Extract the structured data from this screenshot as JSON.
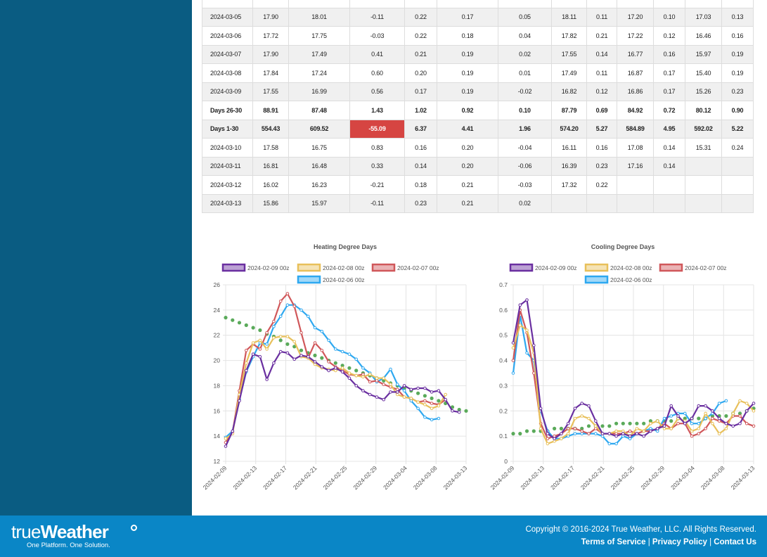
{
  "table": {
    "rows": [
      {
        "cells": [
          "2024-03-05",
          "17.90",
          "18.01",
          "-0.11",
          "0.22",
          "0.17",
          "0.05",
          "18.11",
          "0.11",
          "17.20",
          "0.10",
          "17.03",
          "0.13"
        ]
      },
      {
        "cells": [
          "2024-03-06",
          "17.72",
          "17.75",
          "-0.03",
          "0.22",
          "0.18",
          "0.04",
          "17.82",
          "0.21",
          "17.22",
          "0.12",
          "16.46",
          "0.16"
        ]
      },
      {
        "cells": [
          "2024-03-07",
          "17.90",
          "17.49",
          "0.41",
          "0.21",
          "0.19",
          "0.02",
          "17.55",
          "0.14",
          "16.77",
          "0.16",
          "15.97",
          "0.19"
        ]
      },
      {
        "cells": [
          "2024-03-08",
          "17.84",
          "17.24",
          "0.60",
          "0.20",
          "0.19",
          "0.01",
          "17.49",
          "0.11",
          "16.87",
          "0.17",
          "15.40",
          "0.19"
        ]
      },
      {
        "cells": [
          "2024-03-09",
          "17.55",
          "16.99",
          "0.56",
          "0.17",
          "0.19",
          "-0.02",
          "16.82",
          "0.12",
          "16.86",
          "0.17",
          "15.26",
          "0.23"
        ]
      },
      {
        "bold": true,
        "cells": [
          "Days 26-30",
          "88.91",
          "87.48",
          "1.43",
          "1.02",
          "0.92",
          "0.10",
          "87.79",
          "0.69",
          "84.92",
          "0.72",
          "80.12",
          "0.90"
        ]
      },
      {
        "bold": true,
        "alert_col": 3,
        "cells": [
          "Days 1-30",
          "554.43",
          "609.52",
          "-55.09",
          "6.37",
          "4.41",
          "1.96",
          "574.20",
          "5.27",
          "584.89",
          "4.95",
          "592.02",
          "5.22"
        ]
      },
      {
        "cells": [
          "2024-03-10",
          "17.58",
          "16.75",
          "0.83",
          "0.16",
          "0.20",
          "-0.04",
          "16.11",
          "0.16",
          "17.08",
          "0.14",
          "15.31",
          "0.24"
        ]
      },
      {
        "cells": [
          "2024-03-11",
          "16.81",
          "16.48",
          "0.33",
          "0.14",
          "0.20",
          "-0.06",
          "16.39",
          "0.23",
          "17.16",
          "0.14",
          "",
          ""
        ]
      },
      {
        "cells": [
          "2024-03-12",
          "16.02",
          "16.23",
          "-0.21",
          "0.18",
          "0.21",
          "-0.03",
          "17.32",
          "0.22",
          "",
          "",
          "",
          ""
        ]
      },
      {
        "cells": [
          "2024-03-13",
          "15.86",
          "15.97",
          "-0.11",
          "0.23",
          "0.21",
          "0.02",
          "",
          "",
          "",
          "",
          "",
          ""
        ]
      }
    ]
  },
  "chart_data": [
    {
      "type": "line",
      "title": "Heating Degree Days",
      "ylim": [
        12,
        26
      ],
      "yticks": [
        "12",
        "14",
        "16",
        "18",
        "20",
        "22",
        "24",
        "26"
      ],
      "xticks": [
        "2024-02-09",
        "2024-02-13",
        "2024-02-17",
        "2024-02-21",
        "2024-02-25",
        "2024-02-29",
        "2024-03-04",
        "2024-03-08",
        "2024-03-13"
      ],
      "legend_placement": "top",
      "grid": true,
      "series": [
        {
          "name": "2024-02-09 00z",
          "color": "#6a2fa0",
          "values": [
            13.2,
            14.4,
            16.8,
            19.2,
            20.5,
            20.3,
            18.5,
            19.8,
            20.7,
            20.6,
            20.1,
            20.4,
            20.3,
            19.9,
            19.5,
            19.2,
            19.4,
            19.1,
            18.6,
            18.0,
            17.6,
            17.3,
            17.1,
            16.9,
            17.5,
            17.5,
            18.0,
            17.7,
            17.8,
            17.8,
            17.5,
            17.6,
            16.9,
            16.0,
            15.9
          ]
        },
        {
          "name": "2024-02-08 00z",
          "color": "#e8c05a",
          "values": [
            13.8,
            14.2,
            17.3,
            19.8,
            21.4,
            21.6,
            20.9,
            21.8,
            21.9,
            21.9,
            21.5,
            20.3,
            20.2,
            19.7,
            19.4,
            19.3,
            19.2,
            19.4,
            19.0,
            18.8,
            18.7,
            18.9,
            18.6,
            18.6,
            18.1,
            17.3,
            17.1,
            17.0,
            16.7,
            16.5,
            16.2,
            16.4,
            17.3
          ]
        },
        {
          "name": "2024-02-07 00z",
          "color": "#d0575a",
          "values": [
            13.5,
            14.3,
            17.6,
            20.8,
            21.3,
            20.9,
            22.2,
            23.1,
            24.7,
            25.3,
            24.3,
            22.2,
            20.2,
            21.4,
            20.8,
            19.9,
            19.5,
            19.2,
            18.9,
            18.8,
            18.9,
            18.3,
            18.4,
            18.1,
            17.9,
            17.7,
            17.1,
            17.0,
            16.7,
            16.8,
            16.6,
            16.5,
            16.9
          ]
        },
        {
          "name": "2024-02-06 00z",
          "color": "#2ea8f0",
          "values": [
            13.9,
            14.4,
            16.9,
            19.1,
            20.3,
            21.4,
            21.3,
            22.7,
            23.5,
            24.4,
            24.4,
            24.0,
            23.5,
            22.6,
            22.3,
            21.6,
            20.9,
            20.7,
            20.5,
            20.1,
            19.4,
            19.0,
            18.3,
            18.6,
            19.3,
            18.1,
            17.6,
            16.8,
            16.2,
            15.5,
            15.3,
            15.4
          ]
        },
        {
          "name": "",
          "color": "#5aaa5a",
          "values": [
            23.4,
            23.2,
            23.0,
            22.8,
            22.6,
            22.4,
            22.1,
            21.9,
            21.6,
            21.3,
            21.1,
            20.8,
            20.6,
            20.4,
            20.2,
            20.0,
            19.8,
            19.6,
            19.4,
            19.2,
            19.0,
            18.8,
            18.6,
            18.4,
            18.2,
            18.0,
            17.8,
            17.6,
            17.4,
            17.2,
            17.0,
            16.8,
            16.6,
            16.3,
            16.1,
            16.0
          ]
        }
      ]
    },
    {
      "type": "line",
      "title": "Cooling Degree Days",
      "ylim": [
        0,
        0.7
      ],
      "yticks": [
        "0",
        "0.1",
        "0.2",
        "0.3",
        "0.4",
        "0.5",
        "0.6",
        "0.7"
      ],
      "xticks": [
        "2024-02-09",
        "2024-02-13",
        "2024-02-17",
        "2024-02-21",
        "2024-02-25",
        "2024-02-29",
        "2024-03-04",
        "2024-03-08",
        "2024-03-13"
      ],
      "legend_placement": "top",
      "grid": true,
      "series": [
        {
          "name": "2024-02-09 00z",
          "color": "#6a2fa0",
          "values": [
            0.47,
            0.62,
            0.64,
            0.46,
            0.21,
            0.11,
            0.09,
            0.11,
            0.15,
            0.21,
            0.23,
            0.22,
            0.16,
            0.11,
            0.11,
            0.1,
            0.11,
            0.1,
            0.11,
            0.1,
            0.12,
            0.13,
            0.14,
            0.22,
            0.18,
            0.15,
            0.17,
            0.22,
            0.22,
            0.2,
            0.17,
            0.15,
            0.14,
            0.15,
            0.2,
            0.23
          ]
        },
        {
          "name": "2024-02-08 00z",
          "color": "#e8c05a",
          "values": [
            0.45,
            0.54,
            0.52,
            0.43,
            0.13,
            0.07,
            0.08,
            0.09,
            0.11,
            0.17,
            0.18,
            0.17,
            0.14,
            0.11,
            0.11,
            0.12,
            0.12,
            0.1,
            0.13,
            0.12,
            0.15,
            0.16,
            0.13,
            0.13,
            0.17,
            0.16,
            0.12,
            0.13,
            0.19,
            0.15,
            0.11,
            0.13,
            0.19,
            0.24,
            0.23,
            0.2
          ]
        },
        {
          "name": "2024-02-07 00z",
          "color": "#d0575a",
          "values": [
            0.4,
            0.6,
            0.51,
            0.35,
            0.15,
            0.09,
            0.1,
            0.11,
            0.13,
            0.13,
            0.12,
            0.11,
            0.13,
            0.11,
            0.11,
            0.11,
            0.11,
            0.12,
            0.11,
            0.12,
            0.12,
            0.13,
            0.15,
            0.13,
            0.15,
            0.15,
            0.1,
            0.11,
            0.13,
            0.17,
            0.16,
            0.15,
            0.18,
            0.18,
            0.15,
            0.14
          ]
        },
        {
          "name": "2024-02-06 00z",
          "color": "#2ea8f0",
          "values": [
            0.35,
            0.58,
            0.43,
            0.4,
            0.2,
            0.12,
            0.09,
            0.09,
            0.1,
            0.11,
            0.11,
            0.11,
            0.11,
            0.1,
            0.07,
            0.07,
            0.1,
            0.09,
            0.11,
            0.12,
            0.13,
            0.12,
            0.17,
            0.18,
            0.19,
            0.19,
            0.15,
            0.15,
            0.17,
            0.19,
            0.23,
            0.24
          ]
        },
        {
          "name": "",
          "color": "#5aaa5a",
          "values": [
            0.11,
            0.11,
            0.12,
            0.12,
            0.12,
            0.12,
            0.13,
            0.13,
            0.13,
            0.13,
            0.13,
            0.14,
            0.14,
            0.14,
            0.14,
            0.15,
            0.15,
            0.15,
            0.15,
            0.15,
            0.16,
            0.16,
            0.16,
            0.16,
            0.17,
            0.17,
            0.17,
            0.17,
            0.17,
            0.18,
            0.18,
            0.18,
            0.19,
            0.19,
            0.2,
            0.21
          ]
        }
      ]
    }
  ],
  "footer": {
    "logo_text_light": "true",
    "logo_text_bold": "Weather",
    "tagline": "One Platform. One Solution.",
    "copyright": "Copyright © 2016-2024 True Weather, LLC. All Rights Reserved.",
    "link_terms": "Terms of Service",
    "link_privacy": "Privacy Policy",
    "link_contact": "Contact Us",
    "separator": "|"
  }
}
